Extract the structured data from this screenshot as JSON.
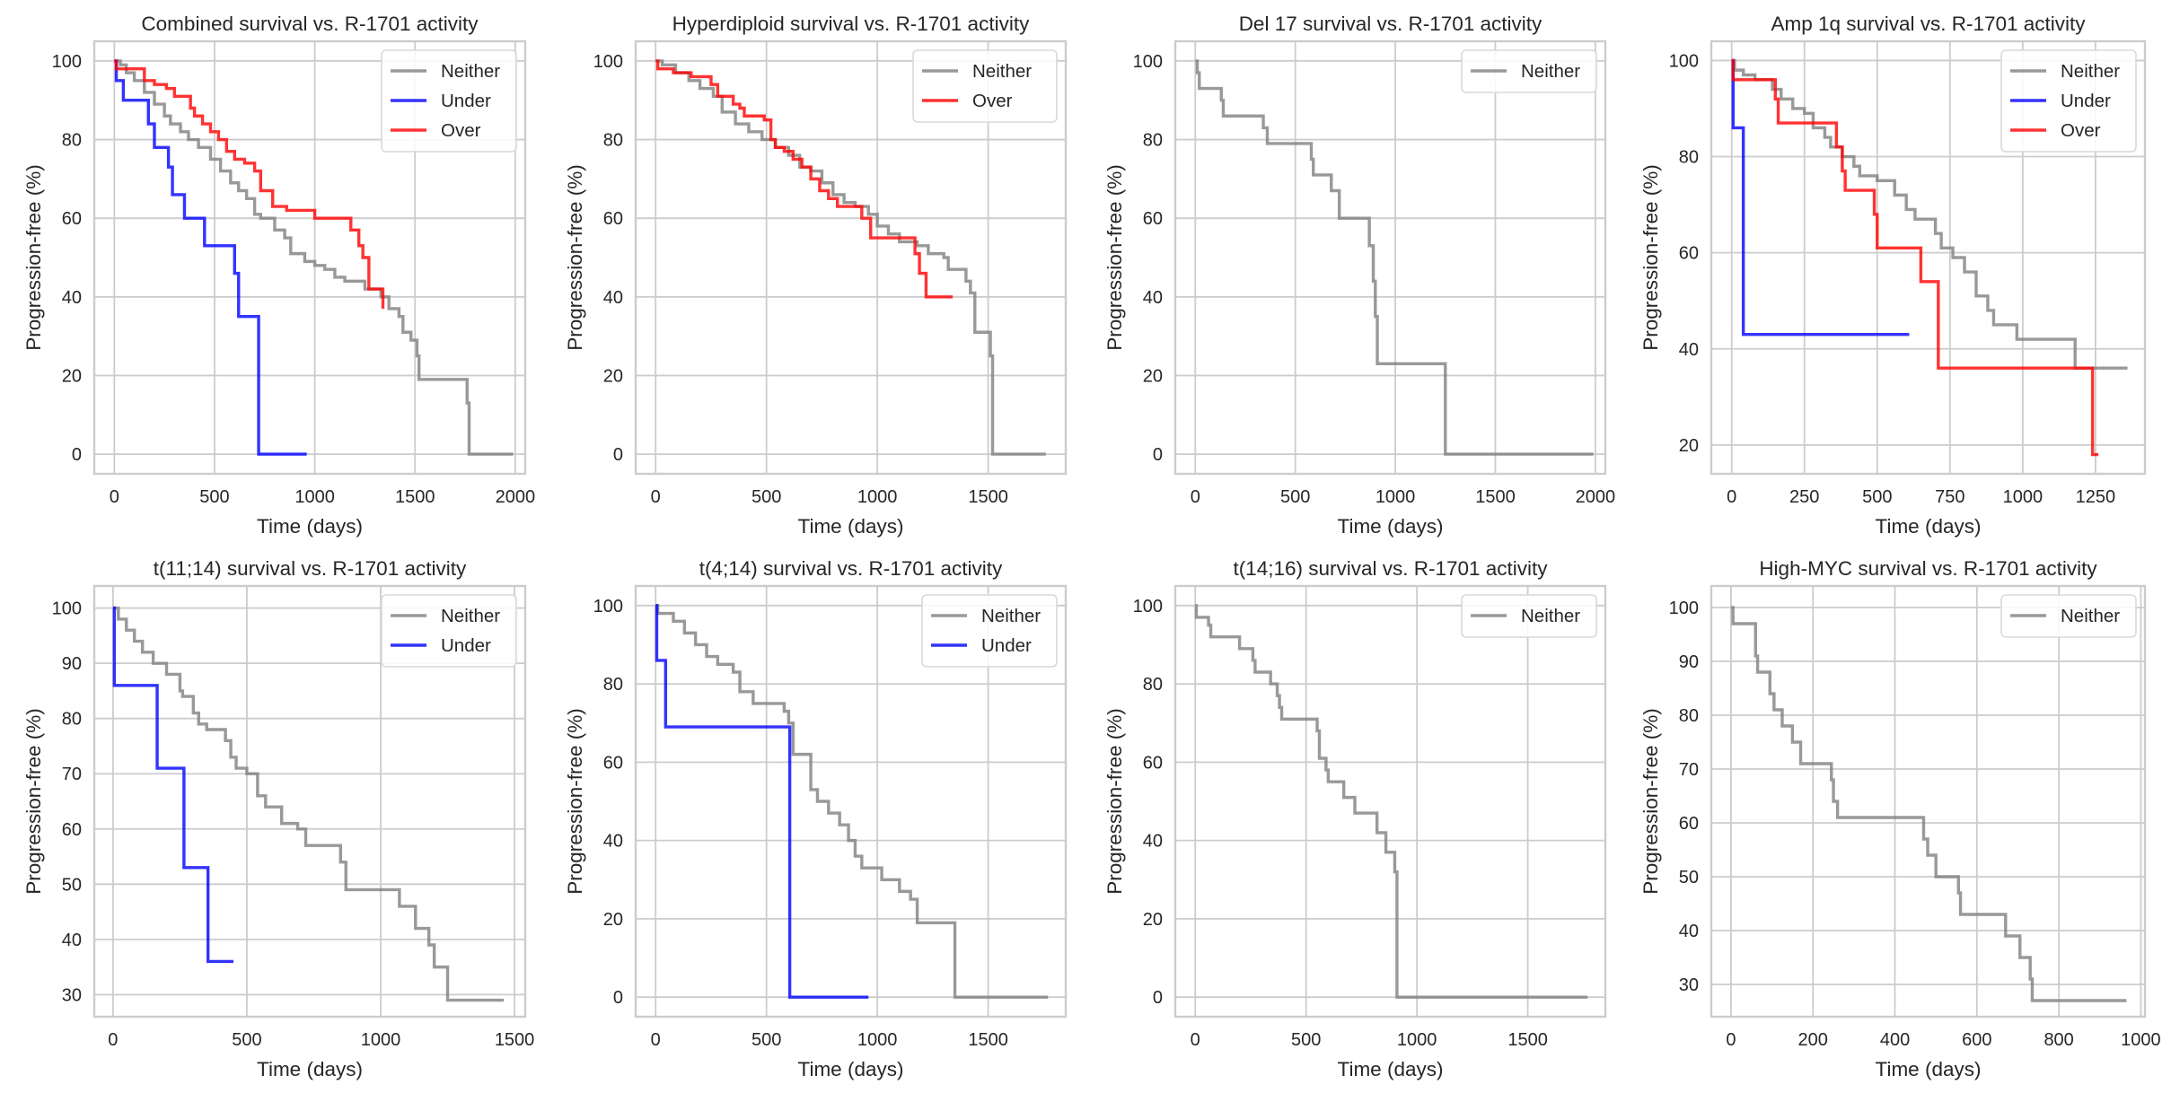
{
  "figure": {
    "colors": {
      "Neither": "#808080",
      "Under": "#0000ff",
      "Over": "#ff0000"
    }
  },
  "chart_data": [
    {
      "type": "line",
      "title": "Combined survival vs. R-1701 activity",
      "xlabel": "Time (days)",
      "ylabel": "Progression-free (%)",
      "xlim": [
        -100,
        2050
      ],
      "ylim": [
        -5,
        105
      ],
      "xticks": [
        0,
        500,
        1000,
        1500,
        2000
      ],
      "yticks": [
        0,
        20,
        40,
        60,
        80,
        100
      ],
      "grid": true,
      "legend": "top-right",
      "series": [
        {
          "name": "Neither",
          "x": [
            0,
            30,
            60,
            100,
            150,
            200,
            250,
            280,
            330,
            370,
            420,
            480,
            530,
            580,
            620,
            660,
            700,
            730,
            800,
            850,
            880,
            950,
            1000,
            1050,
            1100,
            1150,
            1250,
            1330,
            1370,
            1420,
            1440,
            1480,
            1510,
            1520,
            1760,
            1770,
            1990
          ],
          "y": [
            100,
            99,
            97,
            95,
            92,
            89,
            86,
            84,
            82,
            80,
            78,
            75,
            72,
            69,
            67,
            65,
            61,
            60,
            57,
            55,
            51,
            49,
            48,
            47,
            45,
            44,
            42,
            40,
            37,
            35,
            31,
            29,
            25,
            19,
            13,
            0,
            0
          ]
        },
        {
          "name": "Under",
          "x": [
            0,
            10,
            45,
            170,
            200,
            270,
            290,
            350,
            450,
            600,
            620,
            720,
            960
          ],
          "y": [
            100,
            95,
            90,
            84,
            78,
            73,
            66,
            60,
            53,
            46,
            35,
            0,
            0
          ]
        },
        {
          "name": "Over",
          "x": [
            0,
            10,
            150,
            200,
            260,
            300,
            380,
            400,
            440,
            480,
            520,
            560,
            600,
            650,
            700,
            730,
            790,
            860,
            1000,
            1180,
            1220,
            1240,
            1270,
            1340
          ],
          "y": [
            100,
            98,
            95,
            94,
            93,
            91,
            88,
            86,
            84,
            82,
            80,
            77,
            75,
            74,
            72,
            67,
            63,
            62,
            60,
            57,
            53,
            50,
            42,
            37
          ]
        }
      ]
    },
    {
      "type": "line",
      "title": "Hyperdiploid survival vs. R-1701 activity",
      "xlabel": "Time (days)",
      "ylabel": "Progression-free (%)",
      "xlim": [
        -90,
        1850
      ],
      "ylim": [
        -5,
        105
      ],
      "xticks": [
        0,
        500,
        1000,
        1500
      ],
      "yticks": [
        0,
        20,
        40,
        60,
        80,
        100
      ],
      "grid": true,
      "legend": "top-right",
      "series": [
        {
          "name": "Neither",
          "x": [
            0,
            30,
            90,
            150,
            200,
            260,
            300,
            360,
            420,
            480,
            540,
            600,
            650,
            700,
            750,
            800,
            850,
            900,
            960,
            1000,
            1050,
            1100,
            1180,
            1230,
            1300,
            1320,
            1400,
            1420,
            1440,
            1500,
            1510,
            1520,
            1760
          ],
          "y": [
            100,
            99,
            97,
            95,
            93,
            91,
            87,
            84,
            82,
            80,
            78,
            76,
            73,
            72,
            69,
            66,
            64,
            63,
            61,
            58,
            56,
            54,
            53,
            51,
            50,
            47,
            44,
            41,
            31,
            31,
            25,
            0,
            0
          ]
        },
        {
          "name": "Over",
          "x": [
            0,
            10,
            80,
            160,
            250,
            280,
            350,
            380,
            400,
            490,
            520,
            540,
            580,
            620,
            660,
            700,
            740,
            780,
            820,
            930,
            970,
            1170,
            1190,
            1220,
            1340
          ],
          "y": [
            100,
            98,
            97,
            96,
            94,
            91,
            89,
            88,
            86,
            85,
            80,
            78,
            77,
            75,
            73,
            70,
            67,
            65,
            63,
            60,
            55,
            51,
            46,
            40,
            40
          ]
        }
      ]
    },
    {
      "type": "line",
      "title": "Del 17 survival vs. R-1701 activity",
      "xlabel": "Time (days)",
      "ylabel": "Progression-free (%)",
      "xlim": [
        -100,
        2050
      ],
      "ylim": [
        -5,
        105
      ],
      "xticks": [
        0,
        500,
        1000,
        1500,
        2000
      ],
      "yticks": [
        0,
        20,
        40,
        60,
        80,
        100
      ],
      "grid": true,
      "legend": "top-right",
      "series": [
        {
          "name": "Neither",
          "x": [
            0,
            10,
            20,
            130,
            140,
            340,
            360,
            580,
            590,
            680,
            720,
            870,
            890,
            900,
            910,
            1250,
            1990
          ],
          "y": [
            100,
            97,
            93,
            90,
            86,
            83,
            79,
            75,
            71,
            67,
            60,
            53,
            44,
            35,
            23,
            0,
            0
          ]
        }
      ]
    },
    {
      "type": "line",
      "title": "Amp 1q survival vs. R-1701 activity",
      "xlabel": "Time (days)",
      "ylabel": "Progression-free (%)",
      "xlim": [
        -70,
        1420
      ],
      "ylim": [
        14,
        104
      ],
      "xticks": [
        0,
        250,
        500,
        750,
        1000,
        1250
      ],
      "yticks": [
        20,
        40,
        60,
        80,
        100
      ],
      "grid": true,
      "legend": "top-right",
      "series": [
        {
          "name": "Neither",
          "x": [
            0,
            10,
            40,
            80,
            140,
            170,
            210,
            250,
            280,
            320,
            340,
            380,
            420,
            440,
            500,
            560,
            600,
            630,
            700,
            720,
            760,
            800,
            840,
            880,
            900,
            980,
            1180,
            1360
          ],
          "y": [
            100,
            98,
            97,
            96,
            94,
            92,
            90,
            89,
            86,
            84,
            82,
            80,
            78,
            76,
            75,
            72,
            69,
            67,
            64,
            61,
            59,
            56,
            51,
            48,
            45,
            42,
            36,
            36
          ]
        },
        {
          "name": "Under",
          "x": [
            0,
            5,
            40,
            610
          ],
          "y": [
            100,
            86,
            43,
            43
          ]
        },
        {
          "name": "Over",
          "x": [
            0,
            5,
            150,
            160,
            360,
            380,
            390,
            490,
            500,
            650,
            710,
            1240,
            1260
          ],
          "y": [
            100,
            96,
            92,
            87,
            82,
            77,
            73,
            68,
            61,
            54,
            36,
            18,
            18
          ]
        }
      ]
    },
    {
      "type": "line",
      "title": "t(11;14) survival vs. R-1701 activity",
      "xlabel": "Time (days)",
      "ylabel": "Progression-free (%)",
      "xlim": [
        -70,
        1540
      ],
      "ylim": [
        26,
        104
      ],
      "xticks": [
        0,
        500,
        1000,
        1500
      ],
      "yticks": [
        30,
        40,
        50,
        60,
        70,
        80,
        90,
        100
      ],
      "grid": true,
      "legend": "top-right",
      "series": [
        {
          "name": "Neither",
          "x": [
            0,
            20,
            50,
            80,
            110,
            150,
            200,
            250,
            260,
            300,
            320,
            350,
            420,
            440,
            460,
            500,
            540,
            570,
            630,
            690,
            720,
            740,
            850,
            870,
            1070,
            1130,
            1180,
            1200,
            1250,
            1460
          ],
          "y": [
            100,
            98,
            96,
            94,
            92,
            90,
            88,
            85,
            84,
            81,
            79,
            78,
            76,
            73,
            71,
            70,
            66,
            64,
            61,
            60,
            57,
            57,
            54,
            49,
            46,
            42,
            39,
            35,
            29,
            29
          ]
        },
        {
          "name": "Under",
          "x": [
            0,
            5,
            165,
            265,
            355,
            450
          ],
          "y": [
            100,
            86,
            71,
            53,
            36,
            36
          ]
        }
      ]
    },
    {
      "type": "line",
      "title": "t(4;14) survival vs. R-1701 activity",
      "xlabel": "Time (days)",
      "ylabel": "Progression-free (%)",
      "xlim": [
        -90,
        1850
      ],
      "ylim": [
        -5,
        105
      ],
      "xticks": [
        0,
        500,
        1000,
        1500
      ],
      "yticks": [
        0,
        20,
        40,
        60,
        80,
        100
      ],
      "grid": true,
      "legend": "top-right",
      "series": [
        {
          "name": "Neither",
          "x": [
            0,
            10,
            80,
            130,
            180,
            230,
            280,
            350,
            380,
            440,
            580,
            600,
            620,
            640,
            700,
            730,
            780,
            830,
            870,
            900,
            930,
            1020,
            1100,
            1150,
            1180,
            1350,
            1770
          ],
          "y": [
            100,
            98,
            96,
            93,
            90,
            87,
            85,
            83,
            78,
            75,
            73,
            70,
            62,
            62,
            53,
            50,
            47,
            44,
            40,
            36,
            33,
            30,
            27,
            25,
            19,
            0,
            0
          ]
        },
        {
          "name": "Under",
          "x": [
            0,
            5,
            45,
            605,
            960
          ],
          "y": [
            100,
            86,
            69,
            0,
            0
          ]
        }
      ]
    },
    {
      "type": "line",
      "title": "t(14;16) survival vs. R-1701 activity",
      "xlabel": "Time (days)",
      "ylabel": "Progression-free (%)",
      "xlim": [
        -90,
        1850
      ],
      "ylim": [
        -5,
        105
      ],
      "xticks": [
        0,
        500,
        1000,
        1500
      ],
      "yticks": [
        0,
        20,
        40,
        60,
        80,
        100
      ],
      "grid": true,
      "legend": "top-right",
      "series": [
        {
          "name": "Neither",
          "x": [
            0,
            5,
            60,
            70,
            200,
            260,
            270,
            340,
            370,
            380,
            390,
            550,
            560,
            590,
            600,
            670,
            720,
            820,
            860,
            900,
            910,
            1770
          ],
          "y": [
            100,
            97,
            95,
            92,
            89,
            86,
            83,
            80,
            77,
            74,
            71,
            68,
            61,
            58,
            55,
            51,
            47,
            42,
            37,
            32,
            0,
            0
          ]
        }
      ]
    },
    {
      "type": "line",
      "title": "High-MYC survival vs. R-1701 activity",
      "xlabel": "Time (days)",
      "ylabel": "Progression-free (%)",
      "xlim": [
        -48,
        1010
      ],
      "ylim": [
        24,
        104
      ],
      "xticks": [
        0,
        200,
        400,
        600,
        800,
        1000
      ],
      "yticks": [
        30,
        40,
        50,
        60,
        70,
        80,
        90,
        100
      ],
      "grid": true,
      "legend": "top-right",
      "series": [
        {
          "name": "Neither",
          "x": [
            0,
            5,
            60,
            65,
            95,
            105,
            125,
            150,
            170,
            245,
            250,
            260,
            470,
            480,
            500,
            555,
            560,
            670,
            705,
            730,
            735,
            965
          ],
          "y": [
            100,
            97,
            91,
            88,
            84,
            81,
            78,
            75,
            71,
            68,
            64,
            61,
            57,
            54,
            50,
            47,
            43,
            39,
            35,
            31,
            27,
            27
          ]
        }
      ]
    }
  ]
}
